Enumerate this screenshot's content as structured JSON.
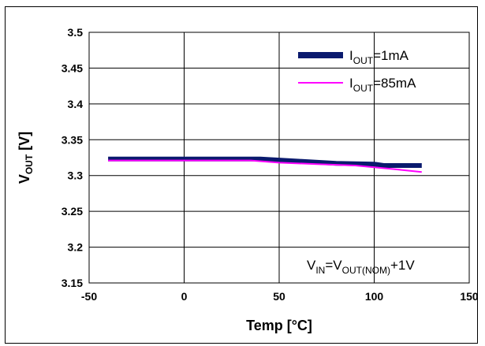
{
  "chart_data": {
    "type": "line",
    "title": "",
    "xlabel": "Temp [°C]",
    "ylabel": {
      "main": "V",
      "sub": "OUT",
      "unit": " [V]"
    },
    "xlim": [
      -50,
      150
    ],
    "ylim": [
      3.15,
      3.5
    ],
    "x_ticks": [
      -50,
      0,
      50,
      100,
      150
    ],
    "y_ticks": [
      3.15,
      3.2,
      3.25,
      3.3,
      3.35,
      3.4,
      3.45,
      3.5
    ],
    "x_tick_labels": [
      "-50",
      "0",
      "50",
      "100",
      "150"
    ],
    "y_tick_labels": [
      "3.15",
      "3.2",
      "3.25",
      "3.3",
      "3.35",
      "3.4",
      "3.45",
      "3.5"
    ],
    "grid": true,
    "legend_position": "top-right",
    "series": [
      {
        "name": {
          "main": "I",
          "sub": "OUT",
          "rest": "=1mA"
        },
        "color": "#0a1a6e",
        "style": "thick",
        "x": [
          -40,
          -20,
          0,
          25,
          40,
          60,
          80,
          100,
          105,
          125
        ],
        "y": [
          3.323,
          3.323,
          3.323,
          3.323,
          3.323,
          3.32,
          3.317,
          3.316,
          3.314,
          3.314
        ]
      },
      {
        "name": {
          "main": "I",
          "sub": "OUT",
          "rest": "=85mA"
        },
        "color": "#ff00ff",
        "style": "thin",
        "x": [
          -40,
          -20,
          0,
          25,
          35,
          50,
          70,
          90,
          110,
          125
        ],
        "y": [
          3.321,
          3.321,
          3.321,
          3.321,
          3.321,
          3.318,
          3.316,
          3.314,
          3.309,
          3.305
        ]
      }
    ],
    "annotation": {
      "parts": [
        {
          "t": "V",
          "sub": false
        },
        {
          "t": "IN",
          "sub": true
        },
        {
          "t": "=V",
          "sub": false
        },
        {
          "t": "OUT(NOM)",
          "sub": true
        },
        {
          "t": "+1V",
          "sub": false
        }
      ]
    }
  }
}
